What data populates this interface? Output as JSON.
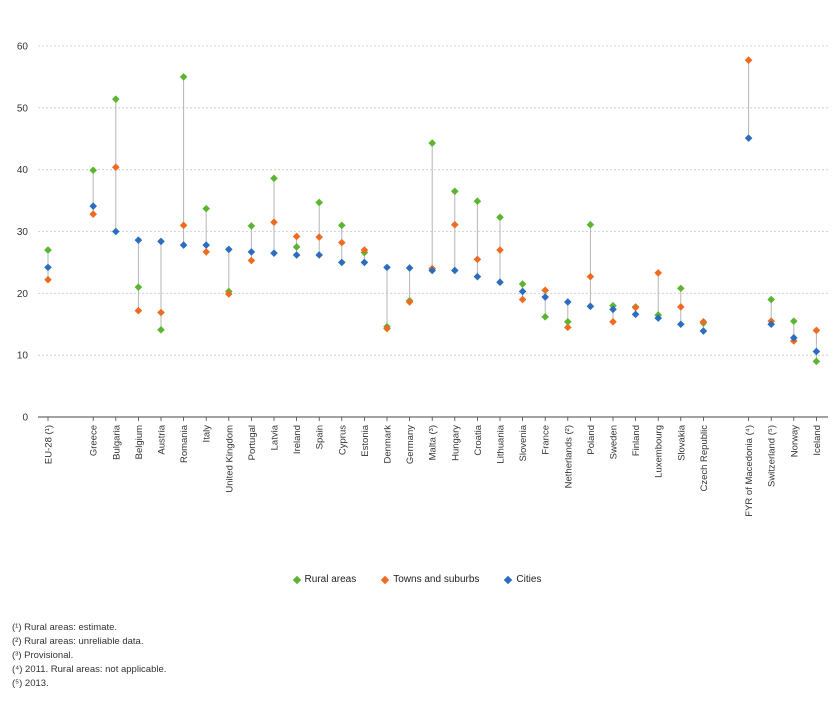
{
  "chart_data": {
    "type": "scatter",
    "categories": [
      "EU-28 (¹)",
      "Greece",
      "Bulgaria",
      "Belgium",
      "Austria",
      "Romania",
      "Italy",
      "United Kingdom",
      "Portugal",
      "Latvia",
      "Ireland",
      "Spain",
      "Cyprus",
      "Estonia",
      "Denmark",
      "Germany",
      "Malta (³)",
      "Hungary",
      "Croatia",
      "Lithuania",
      "Slovenia",
      "France",
      "Netherlands (²)",
      "Poland",
      "Sweden",
      "Finland",
      "Luxembourg",
      "Slovakia",
      "Czech Republic",
      "FYR of Macedonia (⁴)",
      "Switzerland (⁵)",
      "Norway",
      "Iceland"
    ],
    "series": [
      {
        "name": "Rural areas",
        "color": "#5cb531",
        "values": [
          27.0,
          39.9,
          51.4,
          21.0,
          14.1,
          55.0,
          33.7,
          20.3,
          30.9,
          38.6,
          27.5,
          34.7,
          31.0,
          26.6,
          14.6,
          18.8,
          44.3,
          36.5,
          34.9,
          32.3,
          21.5,
          16.2,
          15.4,
          31.1,
          18.0,
          17.8,
          16.5,
          20.8,
          15.2,
          null,
          19.0,
          15.5,
          9.0
        ]
      },
      {
        "name": "Towns and suburbs",
        "color": "#f06b22",
        "values": [
          22.2,
          32.8,
          40.4,
          17.2,
          16.9,
          31.0,
          26.7,
          19.9,
          25.3,
          31.5,
          29.2,
          29.1,
          28.2,
          27.0,
          14.3,
          18.6,
          24.0,
          31.1,
          25.5,
          27.0,
          19.0,
          20.5,
          14.5,
          22.7,
          15.4,
          17.7,
          23.3,
          17.8,
          15.4,
          57.7,
          15.5,
          12.3,
          14.0
        ]
      },
      {
        "name": "Cities",
        "color": "#2b6dbf",
        "values": [
          24.2,
          34.1,
          30.0,
          28.6,
          28.4,
          27.8,
          27.8,
          27.1,
          26.7,
          26.5,
          26.2,
          26.2,
          25.0,
          25.0,
          24.2,
          24.1,
          23.7,
          23.7,
          22.7,
          21.8,
          20.3,
          19.4,
          18.6,
          17.9,
          17.4,
          16.6,
          16.0,
          15.0,
          13.9,
          45.1,
          15.0,
          12.8,
          10.6
        ]
      }
    ],
    "yticks": [
      0,
      10,
      20,
      30,
      40,
      50,
      60
    ],
    "ylim": [
      0,
      60
    ],
    "gap_after": [
      "EU-28 (¹)",
      "Czech Republic"
    ],
    "grid": true,
    "legend_position": "bottom-center"
  },
  "footnotes": [
    "(¹) Rural areas: estimate.",
    "(²) Rural areas: unreliable data.",
    "(³) Provisional.",
    "(⁴) 2011. Rural areas: not applicable.",
    "(⁵) 2013."
  ]
}
